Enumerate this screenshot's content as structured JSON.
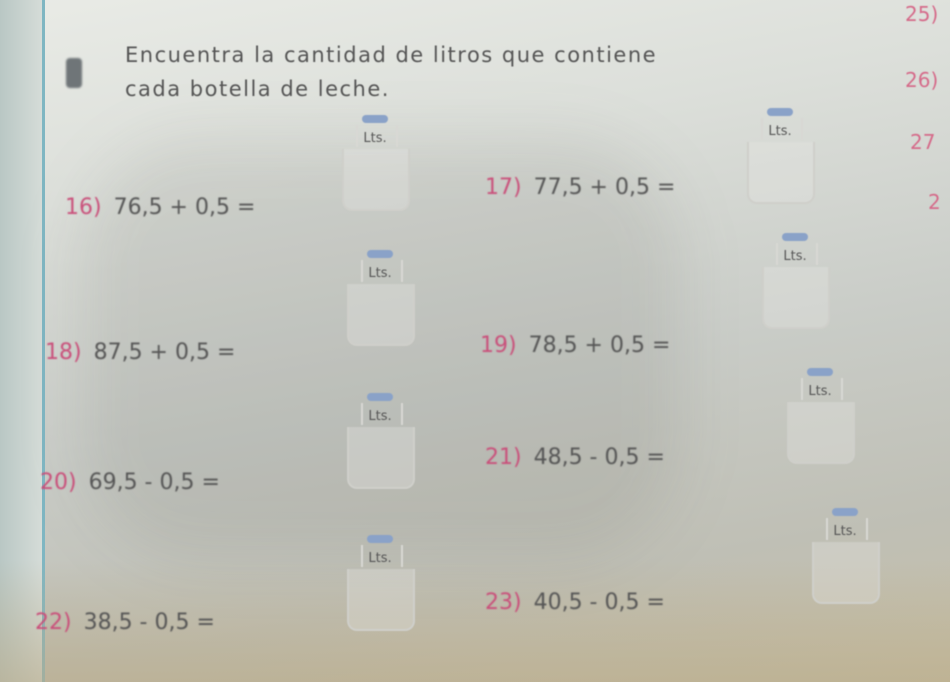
{
  "instruction": {
    "line1": "Encuentra la cantidad de litros que contiene",
    "line2": "cada botella de leche."
  },
  "margin_numbers": [
    "25)",
    "26)",
    "27",
    "2"
  ],
  "unit_label": "Lts.",
  "problems": [
    {
      "number": "16)",
      "expression": "76,5 + 0,5 ="
    },
    {
      "number": "17)",
      "expression": "77,5 + 0,5 ="
    },
    {
      "number": "18)",
      "expression": "87,5 + 0,5 ="
    },
    {
      "number": "19)",
      "expression": "78,5 + 0,5 ="
    },
    {
      "number": "20)",
      "expression": "69,5 - 0,5 ="
    },
    {
      "number": "21)",
      "expression": "48,5 - 0,5 ="
    },
    {
      "number": "22)",
      "expression": "38,5 - 0,5 ="
    },
    {
      "number": "23)",
      "expression": "40,5 - 0,5 ="
    }
  ],
  "colors": {
    "number_pink": "#c94f7a",
    "cap_blue": "#8aa2c8",
    "margin_blue": "#7fb6c2"
  }
}
